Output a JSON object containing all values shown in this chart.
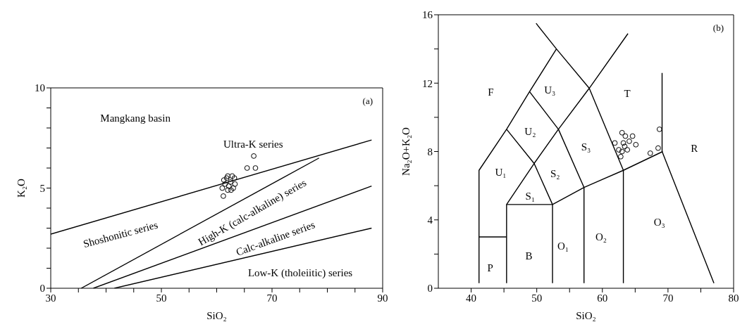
{
  "chart_data": [
    {
      "type": "scatter",
      "title": "(a)",
      "xlabel": "SiO₂",
      "ylabel": "K₂O",
      "xlim": [
        30,
        90
      ],
      "ylim": [
        0,
        10
      ],
      "xticks": [
        30,
        {
          "value": 35,
          "label": null
        },
        {
          "value": 40,
          "label": null
        },
        {
          "value": 45,
          "label": null
        },
        50,
        {
          "value": 55,
          "label": null
        },
        {
          "value": 60,
          "label": null
        },
        {
          "value": 65,
          "label": null
        },
        70,
        {
          "value": 75,
          "label": null
        },
        {
          "value": 80,
          "label": null
        },
        {
          "value": 85,
          "label": null
        },
        90
      ],
      "yticks": [
        0,
        {
          "value": 1,
          "label": null
        },
        {
          "value": 2,
          "label": null
        },
        {
          "value": 3,
          "label": null
        },
        {
          "value": 4,
          "label": null
        },
        5,
        {
          "value": 6,
          "label": null
        },
        {
          "value": 7,
          "label": null
        },
        {
          "value": 8,
          "label": null
        },
        {
          "value": 9,
          "label": null
        },
        10
      ],
      "series": [
        {
          "type": "scatter",
          "marker": "circle",
          "color": "#000000",
          "x": [
            61,
            61.2,
            61.5,
            61.8,
            62,
            62.2,
            62.5,
            62.8,
            63,
            63.3,
            61.3,
            62.6,
            63.2,
            62,
            65.5,
            67,
            66.7
          ],
          "values": [
            5.0,
            4.6,
            5.2,
            5.5,
            5.6,
            5.1,
            5.3,
            5.6,
            5.0,
            5.2,
            5.4,
            4.9,
            5.5,
            4.9,
            6.0,
            6.0,
            6.6
          ]
        },
        {
          "type": "line",
          "color": "#000000",
          "x": [
            30,
            88
          ],
          "values": [
            2.7,
            7.4
          ]
        },
        {
          "type": "line",
          "color": "#000000",
          "x": [
            35.5,
            78.5
          ],
          "values": [
            0,
            6.5
          ]
        },
        {
          "type": "line",
          "color": "#000000",
          "x": [
            37.7,
            88
          ],
          "values": [
            0,
            5.1
          ]
        },
        {
          "type": "line",
          "color": "#000000",
          "x": [
            41.5,
            88
          ],
          "values": [
            0,
            3.0
          ]
        }
      ],
      "annotations": [
        "Mangkang basin",
        "Ultra-K series",
        "Shoshonitic series",
        "High-K (calc-alkaline) series",
        "Calc-alkaline series",
        "Low-K (tholeiitic) series"
      ]
    },
    {
      "type": "scatter",
      "title": "(b)",
      "xlabel": "SiO₂",
      "ylabel": "Na₂O+K₂O",
      "xlim": [
        35,
        80
      ],
      "ylim": [
        0,
        16
      ],
      "xticks": [
        40,
        {
          "value": 45,
          "label": null
        },
        50,
        {
          "value": 55,
          "label": null
        },
        60,
        {
          "value": 65,
          "label": null
        },
        70,
        {
          "value": 75,
          "label": null
        },
        80
      ],
      "yticks": [
        0,
        {
          "value": 2,
          "label": null
        },
        4,
        {
          "value": 6,
          "label": null
        },
        8,
        {
          "value": 10,
          "label": null
        },
        12,
        {
          "value": 14,
          "label": null
        },
        16
      ],
      "series": [
        {
          "type": "scatter",
          "marker": "circle",
          "color": "#000000",
          "x": [
            63.0,
            64.6,
            61.9,
            65.1,
            63.2,
            64.1,
            62.5,
            63.8,
            63.0,
            62.8,
            63.5,
            63.4,
            67.3,
            68.5,
            68.7
          ],
          "values": [
            9.1,
            8.9,
            8.5,
            8.4,
            8.5,
            8.6,
            8.1,
            8.1,
            8.0,
            7.7,
            8.9,
            8.3,
            7.9,
            8.2,
            9.3
          ]
        },
        {
          "type": "line",
          "color": "#000000",
          "x": [
            41.2,
            41.2,
            45.4,
            48.9,
            53
          ],
          "values": [
            0.3,
            6.9,
            9.3,
            11.5,
            14
          ]
        },
        {
          "type": "line",
          "color": "#000000",
          "x": [
            49.9,
            53,
            58,
            63.2,
            63.2
          ],
          "values": [
            15.5,
            14,
            11.7,
            6.9,
            0.3
          ]
        },
        {
          "type": "line",
          "color": "#000000",
          "x": [
            45.4,
            45.4,
            49.6,
            53.3,
            58,
            63.9
          ],
          "values": [
            0.3,
            4.9,
            7.3,
            9.3,
            11.7,
            14.9
          ]
        },
        {
          "type": "line",
          "color": "#000000",
          "x": [
            45.4,
            49.6,
            52.4,
            52.4
          ],
          "values": [
            9.3,
            7.3,
            4.9,
            0.3
          ]
        },
        {
          "type": "line",
          "color": "#000000",
          "x": [
            48.9,
            53.3,
            57.2,
            57.2
          ],
          "values": [
            11.5,
            9.3,
            5.9,
            0.3
          ]
        },
        {
          "type": "line",
          "color": "#000000",
          "x": [
            45.4,
            52.4,
            57.2,
            63.2,
            69.2
          ],
          "values": [
            4.9,
            4.9,
            5.9,
            6.9,
            8.0
          ]
        },
        {
          "type": "line",
          "color": "#000000",
          "x": [
            69.1,
            69.1,
            77
          ],
          "values": [
            12.6,
            8.0,
            0.3
          ]
        },
        {
          "type": "line",
          "color": "#000000",
          "x": [
            41.2,
            45.4
          ],
          "values": [
            3.0,
            3.0
          ]
        }
      ],
      "annotations": [
        "F",
        "U₃",
        "T",
        "U₂",
        "S₃",
        "R",
        "U₁",
        "S₂",
        "S₁",
        "P",
        "B",
        "O₁",
        "O₂",
        "O₃"
      ]
    }
  ]
}
